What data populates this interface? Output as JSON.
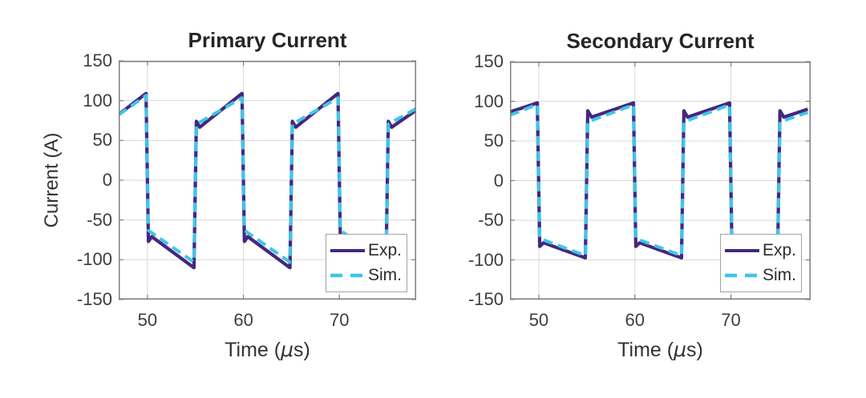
{
  "figure": {
    "background": "#ffffff",
    "style": {
      "grid_color": "#d9d9d9",
      "axis_color": "#7f7f7f",
      "tick_label_color": "#3d3d3d",
      "title_color": "#262626",
      "label_color": "#333333",
      "legend_border_color": "#a3a3a3",
      "legend_text_color": "#2b2b2b"
    }
  },
  "chart_data": [
    {
      "type": "line",
      "title": "Primary Current",
      "xlabel": "Time (μs)",
      "xlabel_parts": {
        "pre": "Time (",
        "mu": "μ",
        "post": "s)"
      },
      "ylabel": "Current (A)",
      "xlim": [
        47,
        78
      ],
      "ylim": [
        -150,
        150
      ],
      "xticks": [
        50,
        60,
        70
      ],
      "yticks": [
        -150,
        -100,
        -50,
        0,
        50,
        100,
        150
      ],
      "grid": true,
      "legend_position": "lower right",
      "series": [
        {
          "name": "Exp.",
          "style": "solid",
          "color": "#45277d",
          "width": 4.2,
          "points": [
            [
              47,
              82.5
            ],
            [
              49.85,
              109
            ],
            [
              50.1,
              -77
            ],
            [
              50.45,
              -71
            ],
            [
              54.85,
              -110
            ],
            [
              55.1,
              74
            ],
            [
              55.45,
              66.5
            ],
            [
              59.85,
              109
            ],
            [
              60.1,
              -77
            ],
            [
              60.45,
              -71
            ],
            [
              64.85,
              -110
            ],
            [
              65.1,
              74
            ],
            [
              65.45,
              66.5
            ],
            [
              69.85,
              109
            ],
            [
              70.1,
              -77
            ],
            [
              70.45,
              -71
            ],
            [
              74.85,
              -110
            ],
            [
              75.1,
              74
            ],
            [
              75.45,
              66.5
            ],
            [
              78,
              88
            ]
          ]
        },
        {
          "name": "Sim.",
          "style": "dashed",
          "color": "#3fc6e8",
          "width": 4,
          "dash": "12 7",
          "points": [
            [
              47,
              82
            ],
            [
              49.85,
              106.5
            ],
            [
              50.1,
              -63
            ],
            [
              54.85,
              -103
            ],
            [
              55.1,
              70.5
            ],
            [
              59.85,
              103.5
            ],
            [
              60.1,
              -63
            ],
            [
              64.85,
              -103
            ],
            [
              65.1,
              70.5
            ],
            [
              69.85,
              103.5
            ],
            [
              70.1,
              -63
            ],
            [
              74.85,
              -103
            ],
            [
              75.1,
              70.5
            ],
            [
              78,
              90
            ]
          ]
        }
      ]
    },
    {
      "type": "line",
      "title": "Secondary Current",
      "xlabel": "Time (μs)",
      "xlabel_parts": {
        "pre": "Time (",
        "mu": "μ",
        "post": "s)"
      },
      "ylabel": "",
      "xlim": [
        47,
        78.3
      ],
      "ylim": [
        -150,
        150
      ],
      "xticks": [
        50,
        60,
        70
      ],
      "yticks": [
        -150,
        -100,
        -50,
        0,
        50,
        100,
        150
      ],
      "grid": true,
      "legend_position": "lower right",
      "series": [
        {
          "name": "Exp.",
          "style": "solid",
          "color": "#45277d",
          "width": 4.2,
          "points": [
            [
              47,
              86.5
            ],
            [
              49.85,
              98
            ],
            [
              50.1,
              -83
            ],
            [
              50.5,
              -78.5
            ],
            [
              54.85,
              -97.5
            ],
            [
              55.1,
              88
            ],
            [
              55.5,
              80
            ],
            [
              59.85,
              98
            ],
            [
              60.1,
              -83
            ],
            [
              60.5,
              -78.5
            ],
            [
              64.85,
              -97.5
            ],
            [
              65.1,
              88
            ],
            [
              65.5,
              80
            ],
            [
              69.85,
              98
            ],
            [
              70.1,
              -83
            ],
            [
              70.5,
              -78.5
            ],
            [
              74.85,
              -97.5
            ],
            [
              75.1,
              88
            ],
            [
              75.5,
              80
            ],
            [
              78,
              90
            ]
          ]
        },
        {
          "name": "Sim.",
          "style": "dashed",
          "color": "#3fc6e8",
          "width": 4,
          "dash": "12 7",
          "points": [
            [
              47,
              82.5
            ],
            [
              49.85,
              96
            ],
            [
              50.1,
              -73
            ],
            [
              54.85,
              -94.5
            ],
            [
              55.1,
              74
            ],
            [
              59.85,
              95.5
            ],
            [
              60.1,
              -73
            ],
            [
              64.85,
              -94.5
            ],
            [
              65.1,
              74
            ],
            [
              69.85,
              95.5
            ],
            [
              70.1,
              -73
            ],
            [
              74.85,
              -94.5
            ],
            [
              75.1,
              74
            ],
            [
              78,
              86
            ]
          ]
        }
      ]
    }
  ]
}
